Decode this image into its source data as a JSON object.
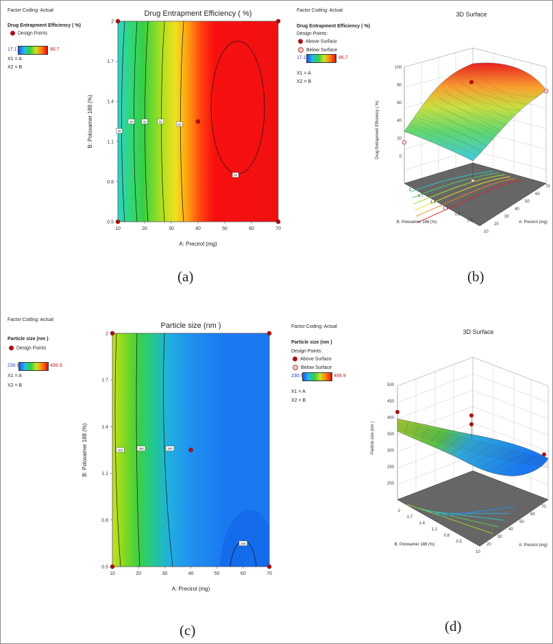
{
  "captions": [
    "(a)",
    "(b)",
    "(c)",
    "(d)"
  ],
  "panel_a": {
    "factor_coding": "Factor Coding: Actual",
    "response_title": "Drug Entrapment Efficiency  ( %)",
    "design_points_label": "Design Points",
    "range_low": "17.1",
    "range_high": "86.7",
    "x1": "X1 = A",
    "x2": "X2 = B"
  },
  "panel_b": {
    "factor_coding": "Factor Coding: Actual",
    "response_title": "Drug Entrapment Efficiency  ( %)",
    "design_points_label": "Design Points:",
    "above_surface": "Above Surface",
    "below_surface": "Below Surface",
    "range_low": "17.1",
    "range_high": "86.7",
    "x1": "X1 = A",
    "x2": "X2 = B"
  },
  "panel_c": {
    "factor_coding": "Factor Coding: Actual",
    "response_title": "Particle size  (nm )",
    "design_points_label": "Design Points",
    "range_low": "230.6",
    "range_high": "499.9",
    "x1": "X1 = A",
    "x2": "X2 = B"
  },
  "panel_d": {
    "factor_coding": "Factor Coding: Actual",
    "response_title": "Particle size  (nm )",
    "design_points_label": "Design Points:",
    "above_surface": "Above Surface",
    "below_surface": "Below Surface",
    "range_low": "230.6",
    "range_high": "499.9",
    "x1": "X1 = A",
    "x2": "X2 = B"
  },
  "colors": {
    "design_point": "#b01010",
    "below_point": "#f0c8c8",
    "contour_line": "#111111",
    "base_plane": "#666666"
  },
  "chart_data": [
    {
      "type": "heatmap",
      "title": "Drug Entrapment Efficiency  ( %)",
      "xlabel": "A: Precirol  (mg)",
      "ylabel": "B: Poloxamer 188  (%)",
      "xlim": [
        10,
        70
      ],
      "ylim": [
        0.5,
        2
      ],
      "x_ticks": [
        "10",
        "20",
        "30",
        "40",
        "50",
        "60",
        "70"
      ],
      "y_ticks": [
        "0.5",
        "0.8",
        "1.1",
        "1.4",
        "1.7",
        "2"
      ],
      "color_range": [
        17.1,
        86.7
      ],
      "design_points": [
        [
          10,
          0.5
        ],
        [
          10,
          2
        ],
        [
          70,
          0.5
        ],
        [
          70,
          2
        ],
        [
          40,
          1.25
        ]
      ],
      "contour_labels": [
        {
          "text": "20",
          "x": 10.5,
          "y": 1.18
        },
        {
          "text": "30",
          "x": 15,
          "y": 1.25
        },
        {
          "text": "40",
          "x": 20,
          "y": 1.25
        },
        {
          "text": "50",
          "x": 26,
          "y": 1.25
        },
        {
          "text": "60",
          "x": 33,
          "y": 1.23
        },
        {
          "text": "80",
          "x": 54,
          "y": 0.85
        }
      ]
    },
    {
      "type": "surface",
      "title": "3D Surface",
      "xlabel": "A: Precirol  (mg)",
      "ylabel": "B: Poloxamer 188  (%)",
      "zlabel": "Drug Entrapment Efficiency  ( %)",
      "x_ticks": [
        "10",
        "20",
        "30",
        "40",
        "50",
        "60",
        "70"
      ],
      "y_ticks": [
        "0.5",
        "0.8",
        "1.1",
        "1.4",
        "1.7",
        "2"
      ],
      "z_ticks": [
        "0",
        "20",
        "40",
        "60",
        "80",
        "100"
      ],
      "zlim": [
        0,
        100
      ]
    },
    {
      "type": "heatmap",
      "title": "Particle size  (nm )",
      "xlabel": "A: Precirol  (mg)",
      "ylabel": "B: Poloxamer 188  (%)",
      "xlim": [
        10,
        70
      ],
      "ylim": [
        0.5,
        2
      ],
      "x_ticks": [
        "10",
        "20",
        "30",
        "40",
        "50",
        "60",
        "70"
      ],
      "y_ticks": [
        "0.5",
        "0.8",
        "1.1",
        "1.4",
        "1.7",
        "2"
      ],
      "color_range": [
        230.6,
        499.9
      ],
      "design_points": [
        [
          10,
          0.5
        ],
        [
          10,
          2
        ],
        [
          70,
          0.5
        ],
        [
          70,
          2
        ],
        [
          40,
          1.25
        ]
      ],
      "contour_labels": [
        {
          "text": "400",
          "x": 13,
          "y": 1.25
        },
        {
          "text": "350",
          "x": 21,
          "y": 1.26
        },
        {
          "text": "300",
          "x": 32,
          "y": 1.26
        },
        {
          "text": "250",
          "x": 60,
          "y": 0.65
        }
      ]
    },
    {
      "type": "surface",
      "title": "3D Surface",
      "xlabel": "A: Precirol  (mg)",
      "ylabel": "B: Poloxamer 188  (%)",
      "zlabel": "Particle size  (nm )",
      "x_ticks": [
        "10",
        "20",
        "30",
        "40",
        "50",
        "60",
        "70"
      ],
      "y_ticks": [
        "0.5",
        "0.8",
        "1.1",
        "1.4",
        "1.7",
        "2"
      ],
      "z_ticks": [
        "200",
        "250",
        "300",
        "350",
        "400",
        "450",
        "500"
      ],
      "zlim": [
        200,
        500
      ]
    }
  ]
}
